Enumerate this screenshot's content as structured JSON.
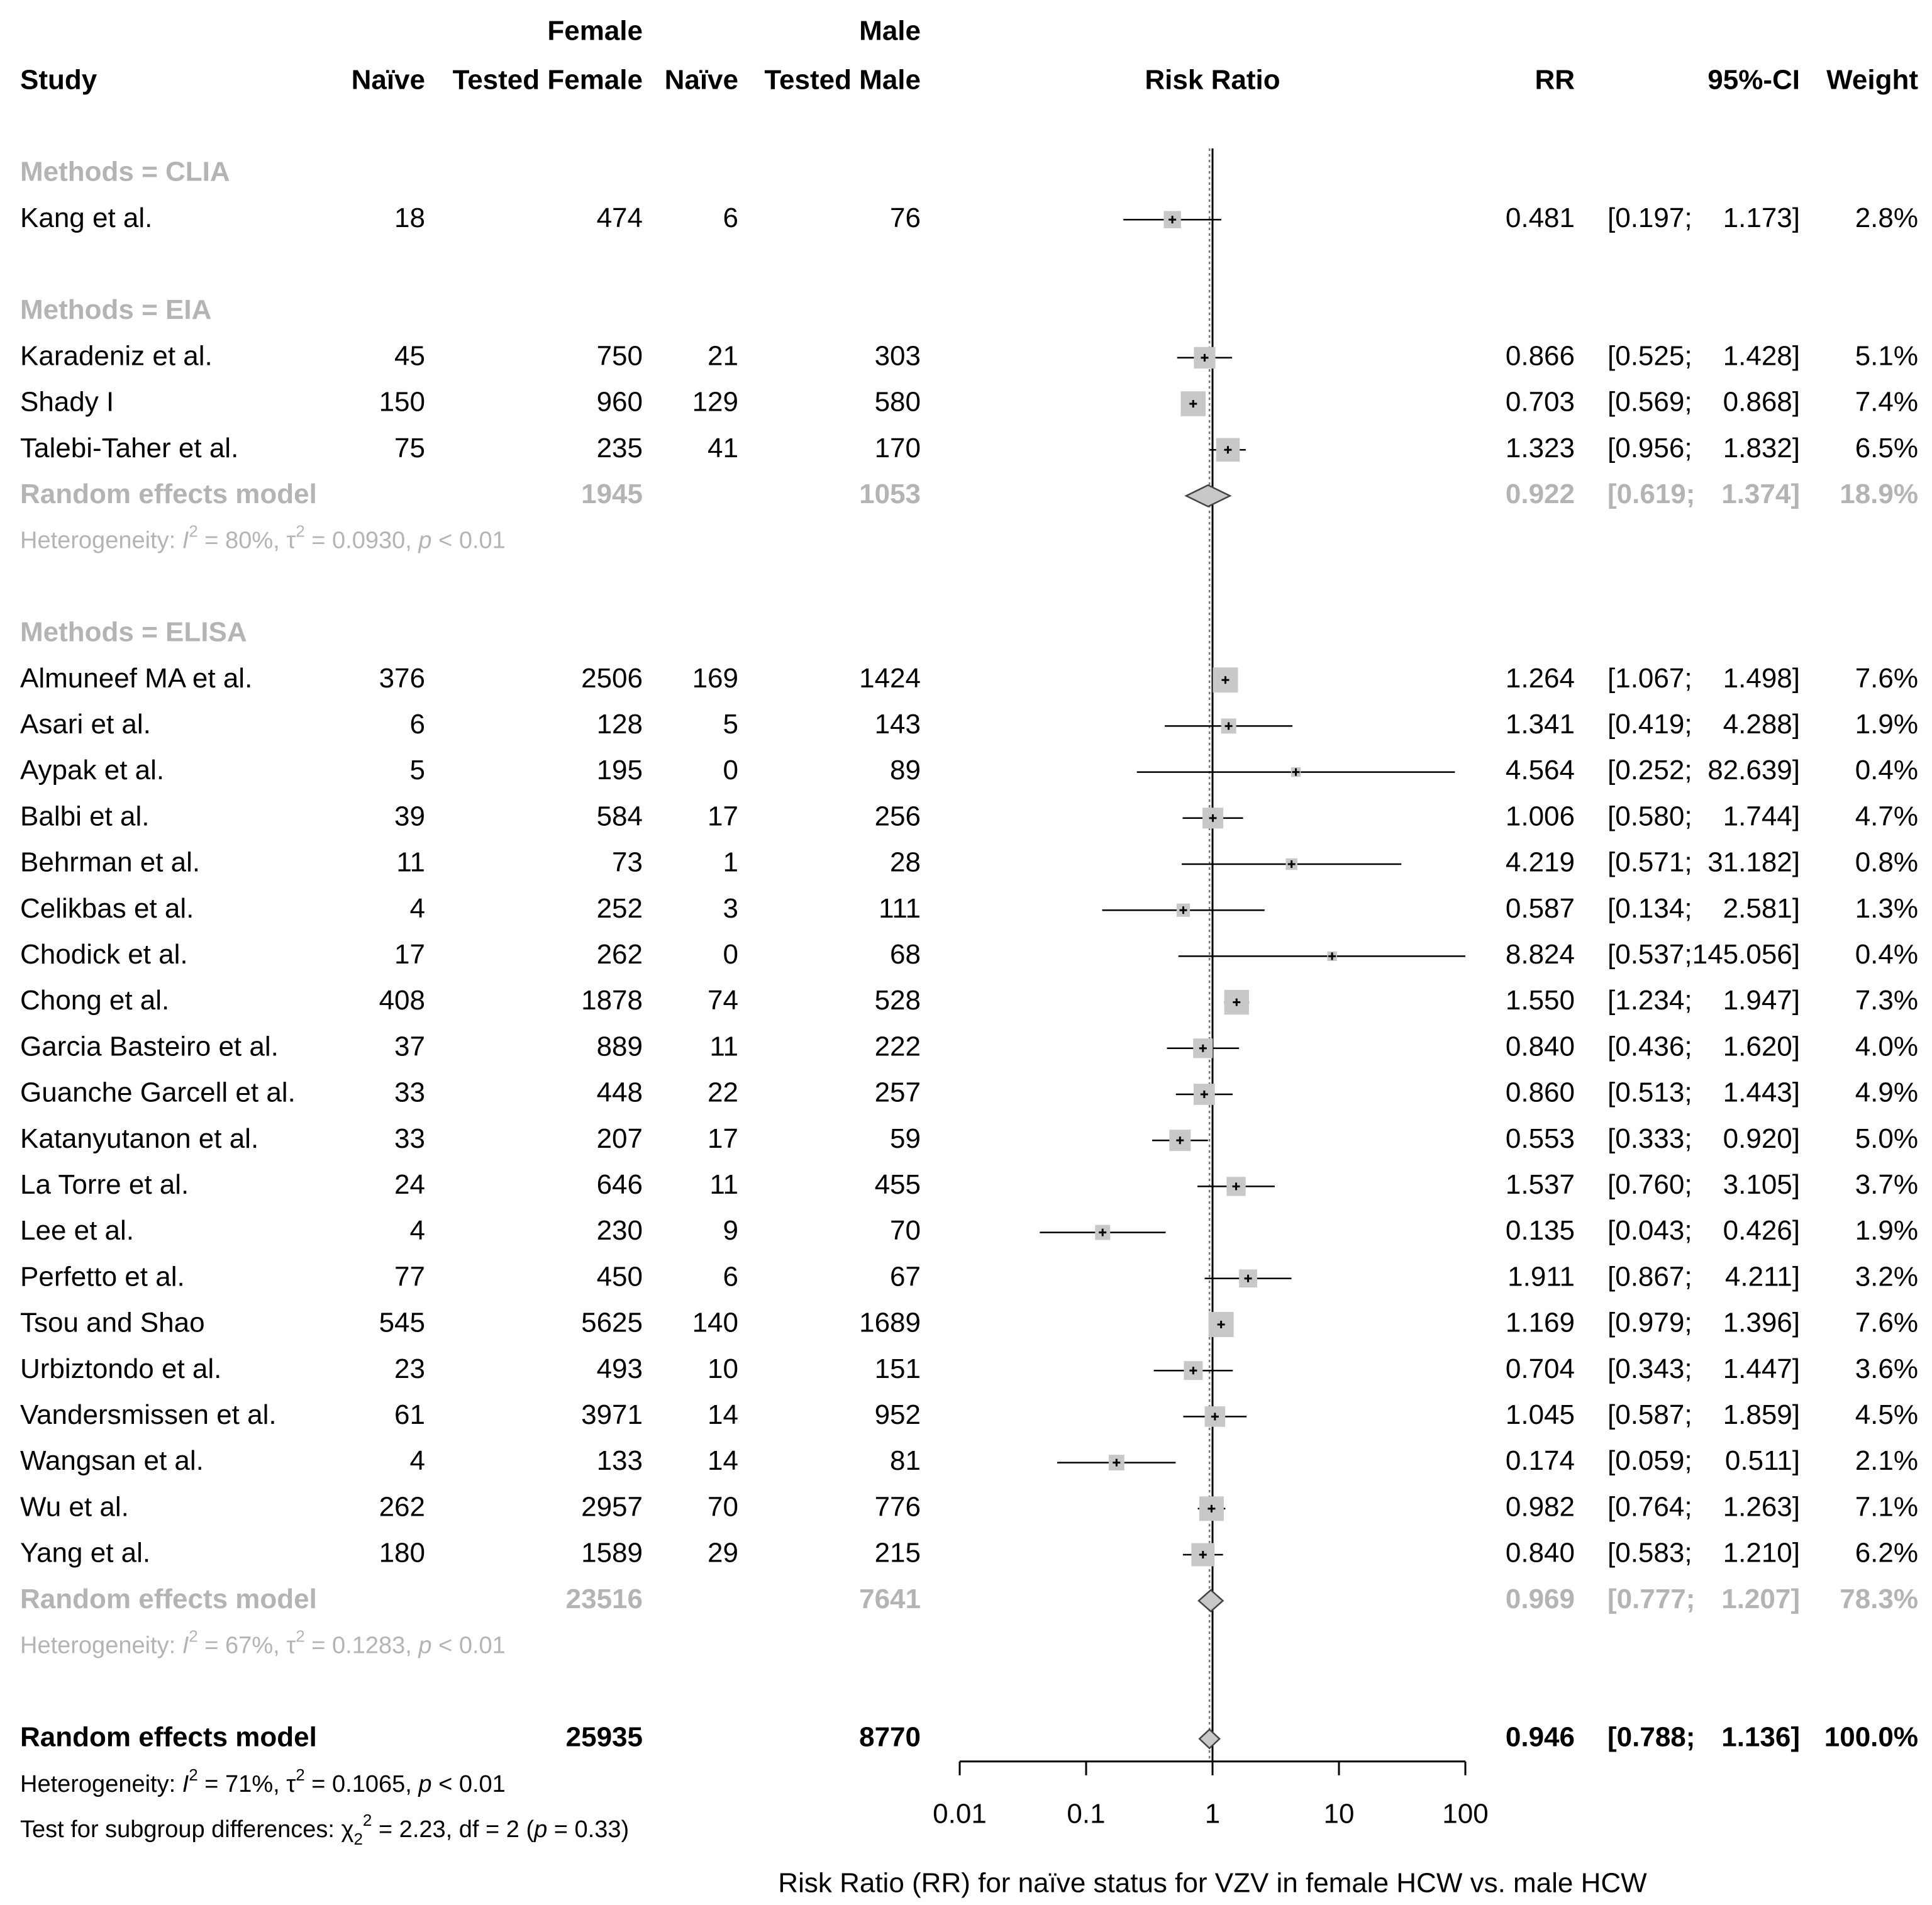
{
  "chart_data": {
    "type": "forest",
    "x_scale": "log10",
    "xlim": [
      0.01,
      100
    ],
    "reference_line": 1,
    "columns": {
      "female_group": "Female",
      "male_group": "Male",
      "study": "Study",
      "naive_female": "Naïve",
      "tested_female": "Tested Female",
      "naive_male": "Naïve",
      "tested_male": "Tested Male",
      "plot": "Risk Ratio",
      "rr": "RR",
      "ci": "95%-CI",
      "weight": "Weight"
    },
    "x_ticks": [
      {
        "value": 0.01,
        "label": "0.01"
      },
      {
        "value": 0.1,
        "label": "0.1"
      },
      {
        "value": 1,
        "label": "1"
      },
      {
        "value": 10,
        "label": "10"
      },
      {
        "value": 100,
        "label": "100"
      }
    ],
    "xlabel": "Risk Ratio (RR) for naïve status for VZV in female HCW vs. male HCW",
    "groups": [
      {
        "label": "Methods = CLIA",
        "studies": [
          {
            "study": "Kang et al.",
            "nf": "18",
            "tf": "474",
            "nm": "6",
            "tm": "76",
            "rr": 0.481,
            "lo": 0.197,
            "hi": 1.173,
            "rr_txt": "0.481",
            "lo_txt": "[0.197;",
            "hi_txt": "1.173]",
            "weight": 2.8,
            "weight_txt": "2.8%"
          }
        ]
      },
      {
        "label": "Methods = EIA",
        "studies": [
          {
            "study": "Karadeniz et al.",
            "nf": "45",
            "tf": "750",
            "nm": "21",
            "tm": "303",
            "rr": 0.866,
            "lo": 0.525,
            "hi": 1.428,
            "rr_txt": "0.866",
            "lo_txt": "[0.525;",
            "hi_txt": "1.428]",
            "weight": 5.1,
            "weight_txt": "5.1%"
          },
          {
            "study": "Shady I",
            "nf": "150",
            "tf": "960",
            "nm": "129",
            "tm": "580",
            "rr": 0.703,
            "lo": 0.569,
            "hi": 0.868,
            "rr_txt": "0.703",
            "lo_txt": "[0.569;",
            "hi_txt": "0.868]",
            "weight": 7.4,
            "weight_txt": "7.4%"
          },
          {
            "study": "Talebi-Taher et al.",
            "nf": "75",
            "tf": "235",
            "nm": "41",
            "tm": "170",
            "rr": 1.323,
            "lo": 0.956,
            "hi": 1.832,
            "rr_txt": "1.323",
            "lo_txt": "[0.956;",
            "hi_txt": "1.832]",
            "weight": 6.5,
            "weight_txt": "6.5%"
          }
        ],
        "summary": {
          "label": "Random effects model",
          "tf": "1945",
          "tm": "1053",
          "rr": 0.922,
          "lo": 0.619,
          "hi": 1.374,
          "rr_txt": "0.922",
          "lo_txt": "[0.619;",
          "hi_txt": "1.374]",
          "weight_txt": "18.9%"
        },
        "heterogeneity": {
          "prefix": "Heterogeneity: ",
          "i2": "I",
          "i2_sup": "2",
          "i2_val": " = 80%, ",
          "tau": "τ",
          "tau_sup": "2",
          "tau_val": " = 0.0930, ",
          "p": "p",
          "p_val": " < 0.01"
        }
      },
      {
        "label": "Methods = ELISA",
        "studies": [
          {
            "study": "Almuneef MA et al.",
            "nf": "376",
            "tf": "2506",
            "nm": "169",
            "tm": "1424",
            "rr": 1.264,
            "lo": 1.067,
            "hi": 1.498,
            "rr_txt": "1.264",
            "lo_txt": "[1.067;",
            "hi_txt": "1.498]",
            "weight": 7.6,
            "weight_txt": "7.6%"
          },
          {
            "study": "Asari et al.",
            "nf": "6",
            "tf": "128",
            "nm": "5",
            "tm": "143",
            "rr": 1.341,
            "lo": 0.419,
            "hi": 4.288,
            "rr_txt": "1.341",
            "lo_txt": "[0.419;",
            "hi_txt": "4.288]",
            "weight": 1.9,
            "weight_txt": "1.9%"
          },
          {
            "study": "Aypak et al.",
            "nf": "5",
            "tf": "195",
            "nm": "0",
            "tm": "89",
            "rr": 4.564,
            "lo": 0.252,
            "hi": 82.639,
            "rr_txt": "4.564",
            "lo_txt": "[0.252;",
            "hi_txt": "82.639]",
            "weight": 0.4,
            "weight_txt": "0.4%"
          },
          {
            "study": "Balbi et al.",
            "nf": "39",
            "tf": "584",
            "nm": "17",
            "tm": "256",
            "rr": 1.006,
            "lo": 0.58,
            "hi": 1.744,
            "rr_txt": "1.006",
            "lo_txt": "[0.580;",
            "hi_txt": "1.744]",
            "weight": 4.7,
            "weight_txt": "4.7%"
          },
          {
            "study": "Behrman et al.",
            "nf": "11",
            "tf": "73",
            "nm": "1",
            "tm": "28",
            "rr": 4.219,
            "lo": 0.571,
            "hi": 31.182,
            "rr_txt": "4.219",
            "lo_txt": "[0.571;",
            "hi_txt": "31.182]",
            "weight": 0.8,
            "weight_txt": "0.8%"
          },
          {
            "study": "Celikbas et al.",
            "nf": "4",
            "tf": "252",
            "nm": "3",
            "tm": "111",
            "rr": 0.587,
            "lo": 0.134,
            "hi": 2.581,
            "rr_txt": "0.587",
            "lo_txt": "[0.134;",
            "hi_txt": "2.581]",
            "weight": 1.3,
            "weight_txt": "1.3%"
          },
          {
            "study": "Chodick et al.",
            "nf": "17",
            "tf": "262",
            "nm": "0",
            "tm": "68",
            "rr": 8.824,
            "lo": 0.537,
            "hi": 145.056,
            "rr_txt": "8.824",
            "lo_txt": "[0.537;",
            "hi_txt": "145.056]",
            "weight": 0.4,
            "weight_txt": "0.4%"
          },
          {
            "study": "Chong et al.",
            "nf": "408",
            "tf": "1878",
            "nm": "74",
            "tm": "528",
            "rr": 1.55,
            "lo": 1.234,
            "hi": 1.947,
            "rr_txt": "1.550",
            "lo_txt": "[1.234;",
            "hi_txt": "1.947]",
            "weight": 7.3,
            "weight_txt": "7.3%"
          },
          {
            "study": "Garcia Basteiro et al.",
            "nf": "37",
            "tf": "889",
            "nm": "11",
            "tm": "222",
            "rr": 0.84,
            "lo": 0.436,
            "hi": 1.62,
            "rr_txt": "0.840",
            "lo_txt": "[0.436;",
            "hi_txt": "1.620]",
            "weight": 4.0,
            "weight_txt": "4.0%"
          },
          {
            "study": "Guanche Garcell et al.",
            "nf": "33",
            "tf": "448",
            "nm": "22",
            "tm": "257",
            "rr": 0.86,
            "lo": 0.513,
            "hi": 1.443,
            "rr_txt": "0.860",
            "lo_txt": "[0.513;",
            "hi_txt": "1.443]",
            "weight": 4.9,
            "weight_txt": "4.9%"
          },
          {
            "study": "Katanyutanon et al.",
            "nf": "33",
            "tf": "207",
            "nm": "17",
            "tm": "59",
            "rr": 0.553,
            "lo": 0.333,
            "hi": 0.92,
            "rr_txt": "0.553",
            "lo_txt": "[0.333;",
            "hi_txt": "0.920]",
            "weight": 5.0,
            "weight_txt": "5.0%"
          },
          {
            "study": "La Torre et al.",
            "nf": "24",
            "tf": "646",
            "nm": "11",
            "tm": "455",
            "rr": 1.537,
            "lo": 0.76,
            "hi": 3.105,
            "rr_txt": "1.537",
            "lo_txt": "[0.760;",
            "hi_txt": "3.105]",
            "weight": 3.7,
            "weight_txt": "3.7%"
          },
          {
            "study": "Lee et al.",
            "nf": "4",
            "tf": "230",
            "nm": "9",
            "tm": "70",
            "rr": 0.135,
            "lo": 0.043,
            "hi": 0.426,
            "rr_txt": "0.135",
            "lo_txt": "[0.043;",
            "hi_txt": "0.426]",
            "weight": 1.9,
            "weight_txt": "1.9%"
          },
          {
            "study": "Perfetto et al.",
            "nf": "77",
            "tf": "450",
            "nm": "6",
            "tm": "67",
            "rr": 1.911,
            "lo": 0.867,
            "hi": 4.211,
            "rr_txt": "1.911",
            "lo_txt": "[0.867;",
            "hi_txt": "4.211]",
            "weight": 3.2,
            "weight_txt": "3.2%"
          },
          {
            "study": "Tsou and Shao",
            "nf": "545",
            "tf": "5625",
            "nm": "140",
            "tm": "1689",
            "rr": 1.169,
            "lo": 0.979,
            "hi": 1.396,
            "rr_txt": "1.169",
            "lo_txt": "[0.979;",
            "hi_txt": "1.396]",
            "weight": 7.6,
            "weight_txt": "7.6%"
          },
          {
            "study": "Urbiztondo et al.",
            "nf": "23",
            "tf": "493",
            "nm": "10",
            "tm": "151",
            "rr": 0.704,
            "lo": 0.343,
            "hi": 1.447,
            "rr_txt": "0.704",
            "lo_txt": "[0.343;",
            "hi_txt": "1.447]",
            "weight": 3.6,
            "weight_txt": "3.6%"
          },
          {
            "study": "Vandersmissen et al.",
            "nf": "61",
            "tf": "3971",
            "nm": "14",
            "tm": "952",
            "rr": 1.045,
            "lo": 0.587,
            "hi": 1.859,
            "rr_txt": "1.045",
            "lo_txt": "[0.587;",
            "hi_txt": "1.859]",
            "weight": 4.5,
            "weight_txt": "4.5%"
          },
          {
            "study": "Wangsan et al.",
            "nf": "4",
            "tf": "133",
            "nm": "14",
            "tm": "81",
            "rr": 0.174,
            "lo": 0.059,
            "hi": 0.511,
            "rr_txt": "0.174",
            "lo_txt": "[0.059;",
            "hi_txt": "0.511]",
            "weight": 2.1,
            "weight_txt": "2.1%"
          },
          {
            "study": "Wu et al.",
            "nf": "262",
            "tf": "2957",
            "nm": "70",
            "tm": "776",
            "rr": 0.982,
            "lo": 0.764,
            "hi": 1.263,
            "rr_txt": "0.982",
            "lo_txt": "[0.764;",
            "hi_txt": "1.263]",
            "weight": 7.1,
            "weight_txt": "7.1%"
          },
          {
            "study": "Yang et al.",
            "nf": "180",
            "tf": "1589",
            "nm": "29",
            "tm": "215",
            "rr": 0.84,
            "lo": 0.583,
            "hi": 1.21,
            "rr_txt": "0.840",
            "lo_txt": "[0.583;",
            "hi_txt": "1.210]",
            "weight": 6.2,
            "weight_txt": "6.2%"
          }
        ],
        "summary": {
          "label": "Random effects model",
          "tf": "23516",
          "tm": "7641",
          "rr": 0.969,
          "lo": 0.777,
          "hi": 1.207,
          "rr_txt": "0.969",
          "lo_txt": "[0.777;",
          "hi_txt": "1.207]",
          "weight_txt": "78.3%"
        },
        "heterogeneity": {
          "prefix": "Heterogeneity: ",
          "i2": "I",
          "i2_sup": "2",
          "i2_val": " = 67%, ",
          "tau": "τ",
          "tau_sup": "2",
          "tau_val": " = 0.1283, ",
          "p": "p",
          "p_val": " < 0.01"
        }
      }
    ],
    "overall": {
      "label": "Random effects model",
      "tf": "25935",
      "tm": "8770",
      "rr": 0.946,
      "lo": 0.788,
      "hi": 1.136,
      "rr_txt": "0.946",
      "lo_txt": "[0.788;",
      "hi_txt": "1.136]",
      "weight_txt": "100.0%",
      "heterogeneity": {
        "prefix": "Heterogeneity: ",
        "i2": "I",
        "i2_sup": "2",
        "i2_val": " = 71%, ",
        "tau": "τ",
        "tau_sup": "2",
        "tau_val": " = 0.1065, ",
        "p": "p",
        "p_val": " < 0.01"
      },
      "subgroup_test": {
        "prefix": "Test for subgroup differences: ",
        "chi": "χ",
        "chi_sub": "2",
        "chi_sup": "2",
        "stat": " = 2.23, df = 2 (",
        "p": "p",
        "p_val": " = 0.33)"
      }
    }
  }
}
